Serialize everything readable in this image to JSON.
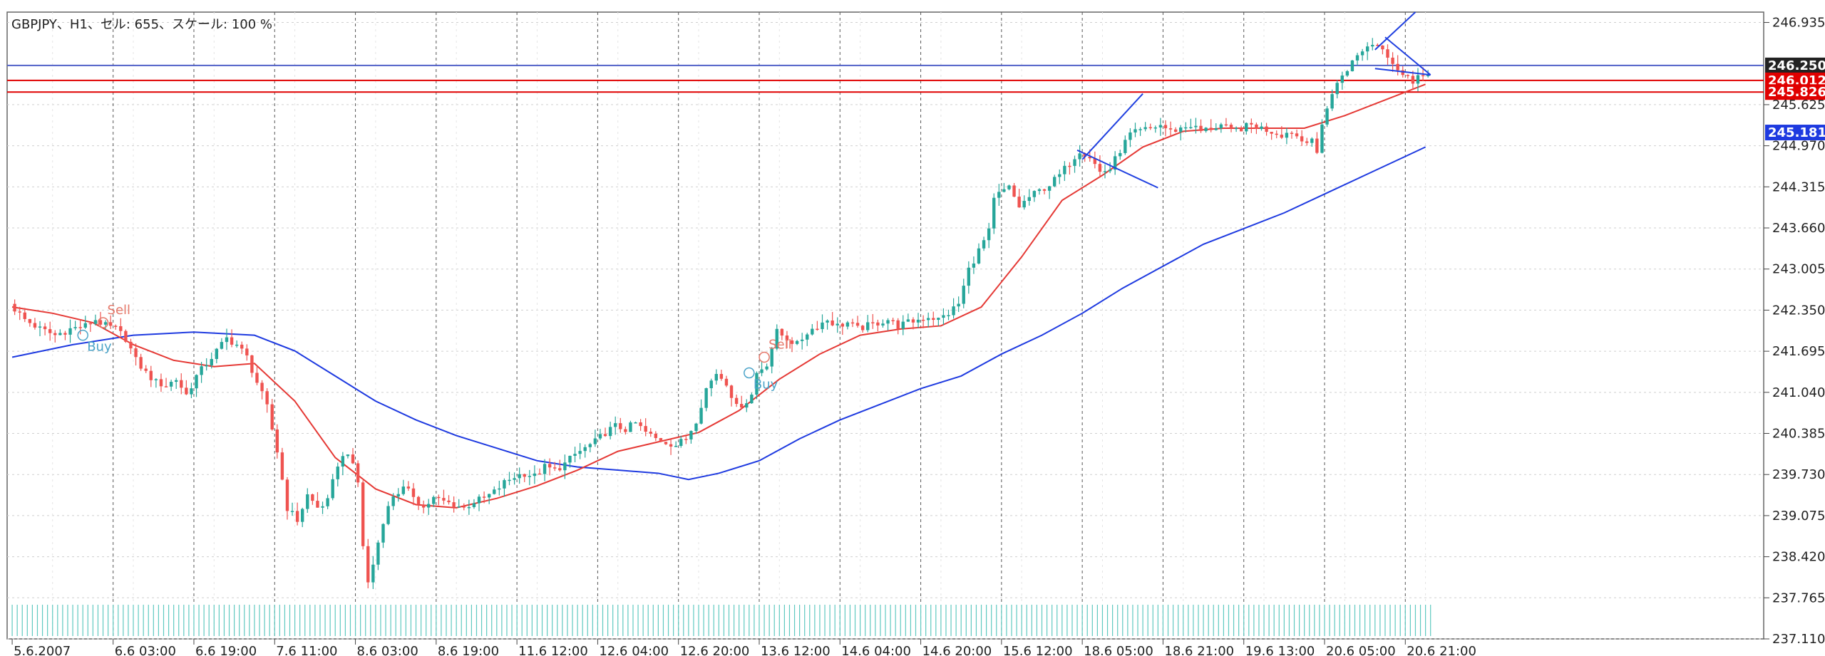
{
  "header": {
    "title": "GBPJPY、H1、セル: 655、スケール: 100 %"
  },
  "colors": {
    "background": "#ffffff",
    "grid": "#cfcfcf",
    "candle_up": "#26a69a",
    "candle_down": "#ef5350",
    "ma_fast": "#e53935",
    "ma_slow": "#1e3ae0",
    "level_red": "#e00000",
    "level_blue": "#4060d0",
    "volume": "#5fc9c0",
    "buy": "#4aa3c8",
    "sell": "#e5786a"
  },
  "chart_data": {
    "type": "candlestick",
    "symbol": "GBPJPY",
    "timeframe": "H1",
    "ylim": [
      237.11,
      247.1
    ],
    "y_ticks": [
      246.935,
      245.625,
      244.97,
      244.315,
      243.66,
      243.005,
      242.35,
      241.695,
      241.04,
      240.385,
      239.73,
      239.075,
      238.42,
      237.765,
      237.11
    ],
    "x_ticks": [
      {
        "label": "5.6.2007",
        "x": 0
      },
      {
        "label": "6.6 03:00",
        "x": 20
      },
      {
        "label": "6.6 19:00",
        "x": 36
      },
      {
        "label": "7.6 11:00",
        "x": 52
      },
      {
        "label": "8.6 03:00",
        "x": 68
      },
      {
        "label": "8.6 19:00",
        "x": 84
      },
      {
        "label": "11.6 12:00",
        "x": 100
      },
      {
        "label": "12.6 04:00",
        "x": 116
      },
      {
        "label": "12.6 20:00",
        "x": 132
      },
      {
        "label": "13.6 12:00",
        "x": 148
      },
      {
        "label": "14.6 04:00",
        "x": 164
      },
      {
        "label": "14.6 20:00",
        "x": 180
      },
      {
        "label": "15.6 12:00",
        "x": 196
      },
      {
        "label": "18.6 05:00",
        "x": 212
      },
      {
        "label": "18.6 21:00",
        "x": 228
      },
      {
        "label": "19.6 13:00",
        "x": 244
      },
      {
        "label": "20.6 05:00",
        "x": 260
      },
      {
        "label": "20.6 21:00",
        "x": 276
      }
    ],
    "x_range": [
      -1,
      347
    ],
    "grid": true,
    "price_path": [
      [
        0,
        242.45
      ],
      [
        3,
        242.2
      ],
      [
        6,
        242.05
      ],
      [
        9,
        241.95
      ],
      [
        12,
        242.05
      ],
      [
        15,
        242.1
      ],
      [
        17,
        242.2
      ],
      [
        19,
        242.1
      ],
      [
        21,
        242.05
      ],
      [
        23,
        241.9
      ],
      [
        25,
        241.55
      ],
      [
        27,
        241.35
      ],
      [
        29,
        241.2
      ],
      [
        31,
        241.15
      ],
      [
        33,
        241.25
      ],
      [
        35,
        241.0
      ],
      [
        37,
        241.3
      ],
      [
        39,
        241.5
      ],
      [
        41,
        241.7
      ],
      [
        43,
        241.9
      ],
      [
        45,
        241.8
      ],
      [
        47,
        241.6
      ],
      [
        49,
        241.2
      ],
      [
        51,
        240.8
      ],
      [
        53,
        240.1
      ],
      [
        55,
        239.2
      ],
      [
        57,
        239.0
      ],
      [
        59,
        239.4
      ],
      [
        61,
        239.2
      ],
      [
        63,
        239.3
      ],
      [
        65,
        239.9
      ],
      [
        67,
        240.1
      ],
      [
        69,
        239.6
      ],
      [
        70,
        238.6
      ],
      [
        71,
        238.0
      ],
      [
        72,
        238.3
      ],
      [
        74,
        239.0
      ],
      [
        76,
        239.4
      ],
      [
        78,
        239.5
      ],
      [
        80,
        239.4
      ],
      [
        82,
        239.2
      ],
      [
        84,
        239.35
      ],
      [
        86,
        239.3
      ],
      [
        88,
        239.25
      ],
      [
        90,
        239.2
      ],
      [
        92,
        239.3
      ],
      [
        94,
        239.35
      ],
      [
        96,
        239.45
      ],
      [
        98,
        239.6
      ],
      [
        100,
        239.7
      ],
      [
        102,
        239.75
      ],
      [
        104,
        239.7
      ],
      [
        106,
        239.85
      ],
      [
        108,
        239.8
      ],
      [
        110,
        239.9
      ],
      [
        112,
        240.05
      ],
      [
        114,
        240.15
      ],
      [
        116,
        240.25
      ],
      [
        118,
        240.4
      ],
      [
        120,
        240.5
      ],
      [
        122,
        240.45
      ],
      [
        124,
        240.55
      ],
      [
        126,
        240.4
      ],
      [
        128,
        240.3
      ],
      [
        130,
        240.25
      ],
      [
        132,
        240.2
      ],
      [
        134,
        240.3
      ],
      [
        136,
        240.6
      ],
      [
        138,
        241.1
      ],
      [
        140,
        241.35
      ],
      [
        142,
        241.2
      ],
      [
        144,
        240.8
      ],
      [
        146,
        240.9
      ],
      [
        147,
        241.0
      ],
      [
        148,
        241.35
      ],
      [
        150,
        241.5
      ],
      [
        152,
        242.0
      ],
      [
        154,
        241.9
      ],
      [
        156,
        241.8
      ],
      [
        158,
        242.0
      ],
      [
        160,
        242.1
      ],
      [
        162,
        242.2
      ],
      [
        164,
        242.1
      ],
      [
        166,
        242.15
      ],
      [
        168,
        242.05
      ],
      [
        170,
        242.1
      ],
      [
        172,
        242.15
      ],
      [
        174,
        242.2
      ],
      [
        176,
        242.1
      ],
      [
        178,
        242.15
      ],
      [
        180,
        242.2
      ],
      [
        182,
        242.25
      ],
      [
        184,
        242.2
      ],
      [
        186,
        242.3
      ],
      [
        188,
        242.45
      ],
      [
        190,
        243.0
      ],
      [
        192,
        243.3
      ],
      [
        194,
        243.6
      ],
      [
        195,
        244.1
      ],
      [
        196,
        244.2
      ],
      [
        198,
        244.3
      ],
      [
        200,
        244.0
      ],
      [
        202,
        244.15
      ],
      [
        204,
        244.25
      ],
      [
        206,
        244.35
      ],
      [
        208,
        244.5
      ],
      [
        210,
        244.7
      ],
      [
        212,
        244.9
      ],
      [
        214,
        244.8
      ],
      [
        216,
        244.55
      ],
      [
        218,
        244.6
      ],
      [
        220,
        244.9
      ],
      [
        222,
        245.15
      ],
      [
        224,
        245.2
      ],
      [
        226,
        245.25
      ],
      [
        228,
        245.3
      ],
      [
        230,
        245.2
      ],
      [
        232,
        245.25
      ],
      [
        234,
        245.3
      ],
      [
        236,
        245.2
      ],
      [
        238,
        245.25
      ],
      [
        240,
        245.3
      ],
      [
        242,
        245.2
      ],
      [
        244,
        245.25
      ],
      [
        246,
        245.3
      ],
      [
        248,
        245.25
      ],
      [
        250,
        245.2
      ],
      [
        252,
        245.15
      ],
      [
        254,
        245.2
      ],
      [
        256,
        245.05
      ],
      [
        258,
        245.1
      ],
      [
        259,
        244.8
      ],
      [
        260,
        245.3
      ],
      [
        261,
        245.6
      ],
      [
        262,
        245.8
      ],
      [
        264,
        246.1
      ],
      [
        266,
        246.3
      ],
      [
        268,
        246.5
      ],
      [
        270,
        246.6
      ],
      [
        272,
        246.55
      ],
      [
        274,
        246.3
      ],
      [
        276,
        246.1
      ],
      [
        278,
        246.0
      ],
      [
        279,
        246.15
      ],
      [
        280,
        246.08
      ]
    ],
    "ma_fast": [
      [
        0,
        242.4
      ],
      [
        8,
        242.3
      ],
      [
        16,
        242.15
      ],
      [
        24,
        241.8
      ],
      [
        32,
        241.55
      ],
      [
        40,
        241.45
      ],
      [
        48,
        241.5
      ],
      [
        56,
        240.9
      ],
      [
        64,
        240.0
      ],
      [
        72,
        239.5
      ],
      [
        80,
        239.25
      ],
      [
        88,
        239.2
      ],
      [
        96,
        239.35
      ],
      [
        104,
        239.55
      ],
      [
        112,
        239.8
      ],
      [
        120,
        240.1
      ],
      [
        128,
        240.25
      ],
      [
        136,
        240.4
      ],
      [
        144,
        240.75
      ],
      [
        152,
        241.25
      ],
      [
        160,
        241.65
      ],
      [
        168,
        241.95
      ],
      [
        176,
        242.05
      ],
      [
        184,
        242.1
      ],
      [
        192,
        242.4
      ],
      [
        200,
        243.2
      ],
      [
        208,
        244.1
      ],
      [
        216,
        244.5
      ],
      [
        224,
        244.95
      ],
      [
        232,
        245.2
      ],
      [
        240,
        245.25
      ],
      [
        248,
        245.25
      ],
      [
        256,
        245.25
      ],
      [
        264,
        245.45
      ],
      [
        272,
        245.7
      ],
      [
        280,
        245.95
      ]
    ],
    "ma_slow": [
      [
        0,
        241.6
      ],
      [
        12,
        241.8
      ],
      [
        24,
        241.95
      ],
      [
        36,
        242.0
      ],
      [
        48,
        241.95
      ],
      [
        56,
        241.7
      ],
      [
        64,
        241.3
      ],
      [
        72,
        240.9
      ],
      [
        80,
        240.6
      ],
      [
        88,
        240.35
      ],
      [
        96,
        240.15
      ],
      [
        104,
        239.95
      ],
      [
        112,
        239.85
      ],
      [
        120,
        239.8
      ],
      [
        128,
        239.75
      ],
      [
        134,
        239.65
      ],
      [
        140,
        239.75
      ],
      [
        148,
        239.95
      ],
      [
        156,
        240.3
      ],
      [
        164,
        240.6
      ],
      [
        172,
        240.85
      ],
      [
        180,
        241.1
      ],
      [
        188,
        241.3
      ],
      [
        196,
        241.65
      ],
      [
        204,
        241.95
      ],
      [
        212,
        242.3
      ],
      [
        220,
        242.7
      ],
      [
        228,
        243.05
      ],
      [
        236,
        243.4
      ],
      [
        244,
        243.65
      ],
      [
        252,
        243.9
      ],
      [
        260,
        244.2
      ],
      [
        268,
        244.5
      ],
      [
        276,
        244.8
      ],
      [
        280,
        244.95
      ]
    ],
    "levels": [
      {
        "price": 246.25,
        "color": "#5060c8",
        "label": "246.250",
        "tag_bg": "#222222"
      },
      {
        "price": 246.012,
        "color": "#e00000",
        "label": "246.012",
        "tag_bg": "#e00000"
      },
      {
        "price": 245.826,
        "color": "#e00000",
        "label": "245.826",
        "tag_bg": "#e00000"
      }
    ],
    "ma_tag": {
      "price": 245.181,
      "label": "245.181",
      "tag_bg": "#1e3ae0"
    },
    "signals": [
      {
        "type": "sell",
        "label": "Sell",
        "x": 18,
        "price": 242.15
      },
      {
        "type": "buy",
        "label": "Buy",
        "x": 14,
        "price": 241.95
      },
      {
        "type": "sell",
        "label": "Sell",
        "x": 149,
        "price": 241.6
      },
      {
        "type": "buy",
        "label": "Buy",
        "x": 146,
        "price": 241.35
      }
    ],
    "trend_lines": [
      {
        "x1": 212,
        "p1": 244.75,
        "x2": 224,
        "p2": 245.8,
        "color": "#2040e0"
      },
      {
        "x1": 211,
        "p1": 244.9,
        "x2": 227,
        "p2": 244.3,
        "color": "#2040e0"
      },
      {
        "x1": 270,
        "p1": 246.5,
        "x2": 278,
        "p2": 247.1,
        "color": "#2040e0"
      },
      {
        "x1": 272,
        "p1": 246.7,
        "x2": 281,
        "p2": 246.1,
        "color": "#2040e0"
      },
      {
        "x1": 270,
        "p1": 246.2,
        "x2": 281,
        "p2": 246.1,
        "color": "#2040e0"
      }
    ],
    "volume_end_x": 281
  }
}
